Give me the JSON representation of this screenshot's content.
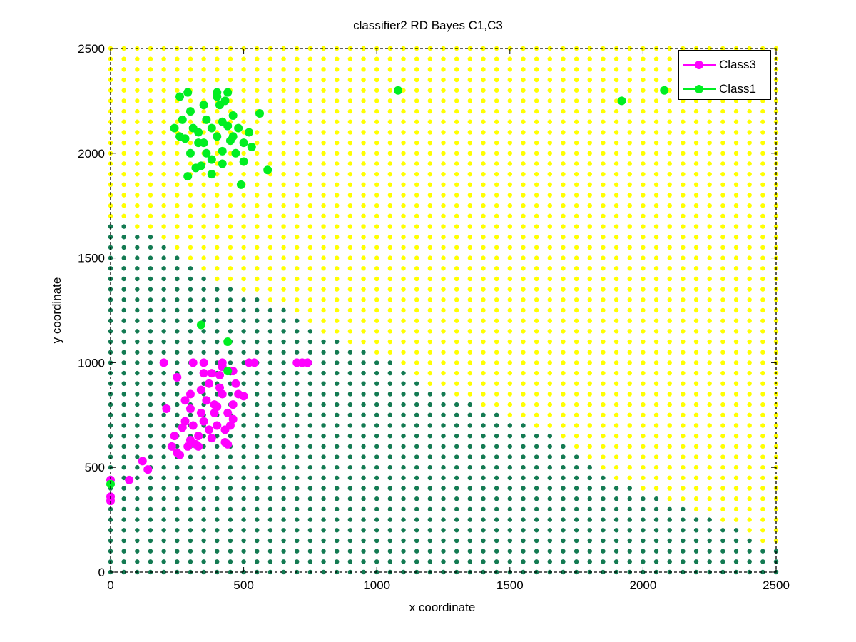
{
  "chart_data": {
    "type": "scatter",
    "title": "classifier2 RD Bayes C1,C3",
    "xlabel": "x coordinate",
    "ylabel": "y coordinate",
    "xlim": [
      0,
      2500
    ],
    "ylim": [
      0,
      2500
    ],
    "xticks": [
      "0",
      "500",
      "1000",
      "1500",
      "2000",
      "2500"
    ],
    "yticks": [
      "0",
      "500",
      "1000",
      "1500",
      "2000",
      "2500"
    ],
    "grid": false,
    "legend_position": "top-right",
    "colors": {
      "class3": "#ff00ff",
      "class1": "#00ee22",
      "region_class1": "#ffff00",
      "region_class3": "#137a52"
    },
    "decision_region": {
      "grid_step": 50,
      "boundary_x": [
        0,
        50,
        150,
        200,
        250,
        300,
        350,
        450,
        550,
        650,
        700,
        750,
        850,
        950,
        1050,
        1150,
        1250,
        1350,
        1450,
        1550,
        1650,
        1750,
        1850,
        1950,
        2050,
        2150,
        2250,
        2350,
        2450,
        2500
      ],
      "boundary_y": [
        1660,
        1660,
        1610,
        1560,
        1510,
        1460,
        1410,
        1360,
        1310,
        1260,
        1210,
        1160,
        1110,
        1060,
        1010,
        910,
        860,
        810,
        760,
        710,
        660,
        560,
        460,
        410,
        360,
        310,
        260,
        210,
        110,
        110
      ]
    },
    "series": [
      {
        "name": "Class3",
        "points": [
          [
            390,
            800
          ],
          [
            350,
            720
          ],
          [
            420,
            850
          ],
          [
            370,
            900
          ],
          [
            330,
            650
          ],
          [
            300,
            780
          ],
          [
            440,
            760
          ],
          [
            360,
            820
          ],
          [
            400,
            700
          ],
          [
            310,
            700
          ],
          [
            380,
            950
          ],
          [
            420,
            980
          ],
          [
            340,
            870
          ],
          [
            460,
            800
          ],
          [
            290,
            600
          ],
          [
            260,
            560
          ],
          [
            240,
            650
          ],
          [
            280,
            720
          ],
          [
            470,
            900
          ],
          [
            480,
            850
          ],
          [
            500,
            840
          ],
          [
            450,
            700
          ],
          [
            430,
            620
          ],
          [
            210,
            780
          ],
          [
            200,
            1000
          ],
          [
            250,
            930
          ],
          [
            310,
            1000
          ],
          [
            350,
            1000
          ],
          [
            420,
            1000
          ],
          [
            520,
            1000
          ],
          [
            540,
            1000
          ],
          [
            700,
            1000
          ],
          [
            720,
            1000
          ],
          [
            740,
            1000
          ],
          [
            120,
            530
          ],
          [
            140,
            490
          ],
          [
            70,
            440
          ],
          [
            0,
            440
          ],
          [
            0,
            360
          ],
          [
            0,
            340
          ],
          [
            330,
            600
          ],
          [
            440,
            610
          ],
          [
            380,
            640
          ],
          [
            320,
            610
          ],
          [
            410,
            940
          ],
          [
            460,
            730
          ],
          [
            270,
            690
          ],
          [
            300,
            850
          ],
          [
            340,
            760
          ],
          [
            390,
            760
          ],
          [
            410,
            880
          ],
          [
            280,
            820
          ],
          [
            350,
            950
          ],
          [
            460,
            960
          ],
          [
            230,
            600
          ],
          [
            250,
            570
          ],
          [
            300,
            630
          ],
          [
            370,
            680
          ],
          [
            430,
            680
          ],
          [
            400,
            790
          ]
        ]
      },
      {
        "name": "Class1",
        "points": [
          [
            400,
            2080
          ],
          [
            350,
            2050
          ],
          [
            420,
            2010
          ],
          [
            380,
            1970
          ],
          [
            330,
            2100
          ],
          [
            300,
            2000
          ],
          [
            450,
            2060
          ],
          [
            360,
            2160
          ],
          [
            410,
            2230
          ],
          [
            310,
            2120
          ],
          [
            470,
            2000
          ],
          [
            440,
            2130
          ],
          [
            340,
            1940
          ],
          [
            500,
            2050
          ],
          [
            280,
            2070
          ],
          [
            240,
            2120
          ],
          [
            260,
            2270
          ],
          [
            290,
            2290
          ],
          [
            400,
            2290
          ],
          [
            430,
            2250
          ],
          [
            440,
            2290
          ],
          [
            560,
            2190
          ],
          [
            530,
            2030
          ],
          [
            500,
            1960
          ],
          [
            590,
            1920
          ],
          [
            490,
            1850
          ],
          [
            290,
            1890
          ],
          [
            320,
            1930
          ],
          [
            380,
            1900
          ],
          [
            420,
            1950
          ],
          [
            260,
            2080
          ],
          [
            270,
            2160
          ],
          [
            350,
            2230
          ],
          [
            400,
            2270
          ],
          [
            460,
            2180
          ],
          [
            520,
            2100
          ],
          [
            360,
            2000
          ],
          [
            330,
            2050
          ],
          [
            380,
            2120
          ],
          [
            420,
            2150
          ],
          [
            1080,
            2300
          ],
          [
            1920,
            2250
          ],
          [
            2080,
            2300
          ],
          [
            340,
            1180
          ],
          [
            440,
            1100
          ],
          [
            440,
            960
          ],
          [
            0,
            420
          ],
          [
            300,
            2200
          ],
          [
            460,
            2080
          ],
          [
            480,
            2120
          ]
        ]
      }
    ]
  }
}
